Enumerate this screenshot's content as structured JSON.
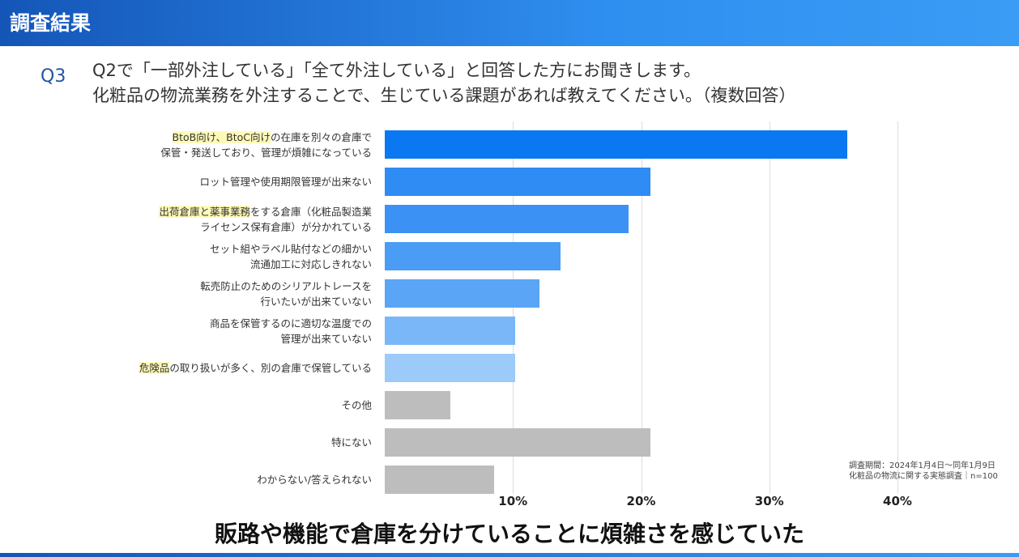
{
  "header": {
    "title": "調査結果"
  },
  "question": {
    "number": "Q3",
    "line1": "Q2で「一部外注している」「全て外注している」と回答した方にお聞きします。",
    "line2": "化粧品の物流業務を外注することで、生じている課題があれば教えてください。（複数回答）"
  },
  "chart_data": {
    "type": "bar",
    "orientation": "horizontal",
    "categories": [
      {
        "lines": [
          [
            {
              "t": "BtoB向け、BtoC向け",
              "hl": true
            },
            {
              "t": "の在庫を別々の倉庫で"
            }
          ],
          [
            {
              "t": "保管・発送しており、管理が煩雑になっている"
            }
          ]
        ]
      },
      {
        "lines": [
          [
            {
              "t": "ロット管理や使用期限管理が出来ない"
            }
          ]
        ]
      },
      {
        "lines": [
          [
            {
              "t": "出荷倉庫と薬事業務",
              "hl": true
            },
            {
              "t": "をする倉庫（化粧品製造業"
            }
          ],
          [
            {
              "t": "ライセンス保有倉庫）が分かれている"
            }
          ]
        ]
      },
      {
        "lines": [
          [
            {
              "t": "セット組やラベル貼付などの細かい"
            }
          ],
          [
            {
              "t": "流通加工に対応しきれない"
            }
          ]
        ]
      },
      {
        "lines": [
          [
            {
              "t": "転売防止のためのシリアルトレースを"
            }
          ],
          [
            {
              "t": "行いたいが出来ていない"
            }
          ]
        ]
      },
      {
        "lines": [
          [
            {
              "t": "商品を保管するのに適切な温度での"
            }
          ],
          [
            {
              "t": "管理が出来ていない"
            }
          ]
        ]
      },
      {
        "lines": [
          [
            {
              "t": "危険品",
              "hl": true
            },
            {
              "t": "の取り扱いが多く、別の倉庫で保管している"
            }
          ]
        ]
      },
      {
        "lines": [
          [
            {
              "t": "その他"
            }
          ]
        ]
      },
      {
        "lines": [
          [
            {
              "t": "特にない"
            }
          ]
        ]
      },
      {
        "lines": [
          [
            {
              "t": "わからない/答えられない"
            }
          ]
        ]
      }
    ],
    "values": [
      36.1,
      20.7,
      19.0,
      13.7,
      12.1,
      10.2,
      10.2,
      5.1,
      20.7,
      8.5
    ],
    "colors": [
      "#0a78f0",
      "#2f8cf4",
      "#3b92f4",
      "#4b9cf5",
      "#5aa5f6",
      "#7ab7f8",
      "#9ccaf9",
      "#bdbdbd",
      "#bdbdbd",
      "#bdbdbd"
    ],
    "xlim": [
      0,
      40
    ],
    "xticks": [
      "10%",
      "20%",
      "30%",
      "40%"
    ],
    "grid": true
  },
  "note": {
    "line1": "調査期間：2024年1月4日～同年1月9日",
    "line2": "化粧品の物流に関する実態調査｜n=100"
  },
  "conclusion": "販路や機能で倉庫を分けていることに煩雑さを感じていた"
}
